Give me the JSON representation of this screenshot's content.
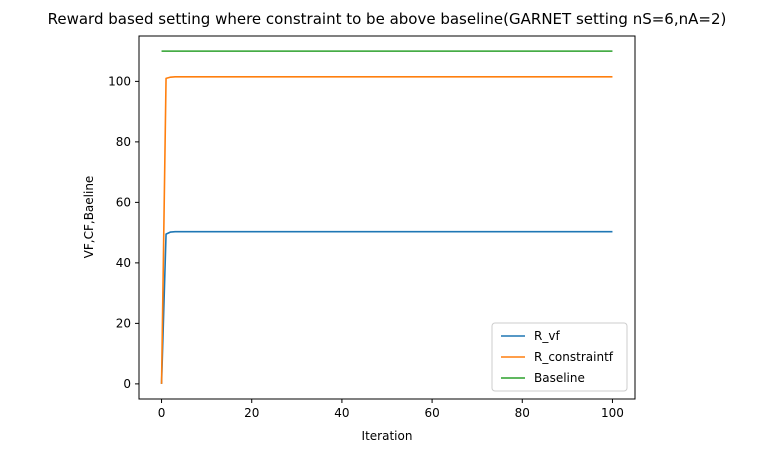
{
  "chart_data": {
    "type": "line",
    "title": "Reward based setting where constraint to be above baseline(GARNET setting nS=6,nA=2)",
    "xlabel": "Iteration",
    "ylabel": "VF,CF,Baeline",
    "xlim": [
      -5,
      105
    ],
    "ylim": [
      -5,
      115
    ],
    "xticks": [
      0,
      20,
      40,
      60,
      80,
      100
    ],
    "yticks": [
      0,
      20,
      40,
      60,
      80,
      100
    ],
    "grid": false,
    "legend_position": "lower-right",
    "series": [
      {
        "name": "R_vf",
        "color": "#1f77b4",
        "x": [
          0,
          1,
          2,
          3,
          100
        ],
        "y": [
          0,
          49.5,
          50.2,
          50.3,
          50.3
        ]
      },
      {
        "name": "R_constraintf",
        "color": "#ff7f0e",
        "x": [
          0,
          1,
          2,
          3,
          100
        ],
        "y": [
          0,
          101.0,
          101.4,
          101.5,
          101.5
        ]
      },
      {
        "name": "Baseline",
        "color": "#2ca02c",
        "x": [
          0,
          100
        ],
        "y": [
          110,
          110
        ]
      }
    ]
  }
}
